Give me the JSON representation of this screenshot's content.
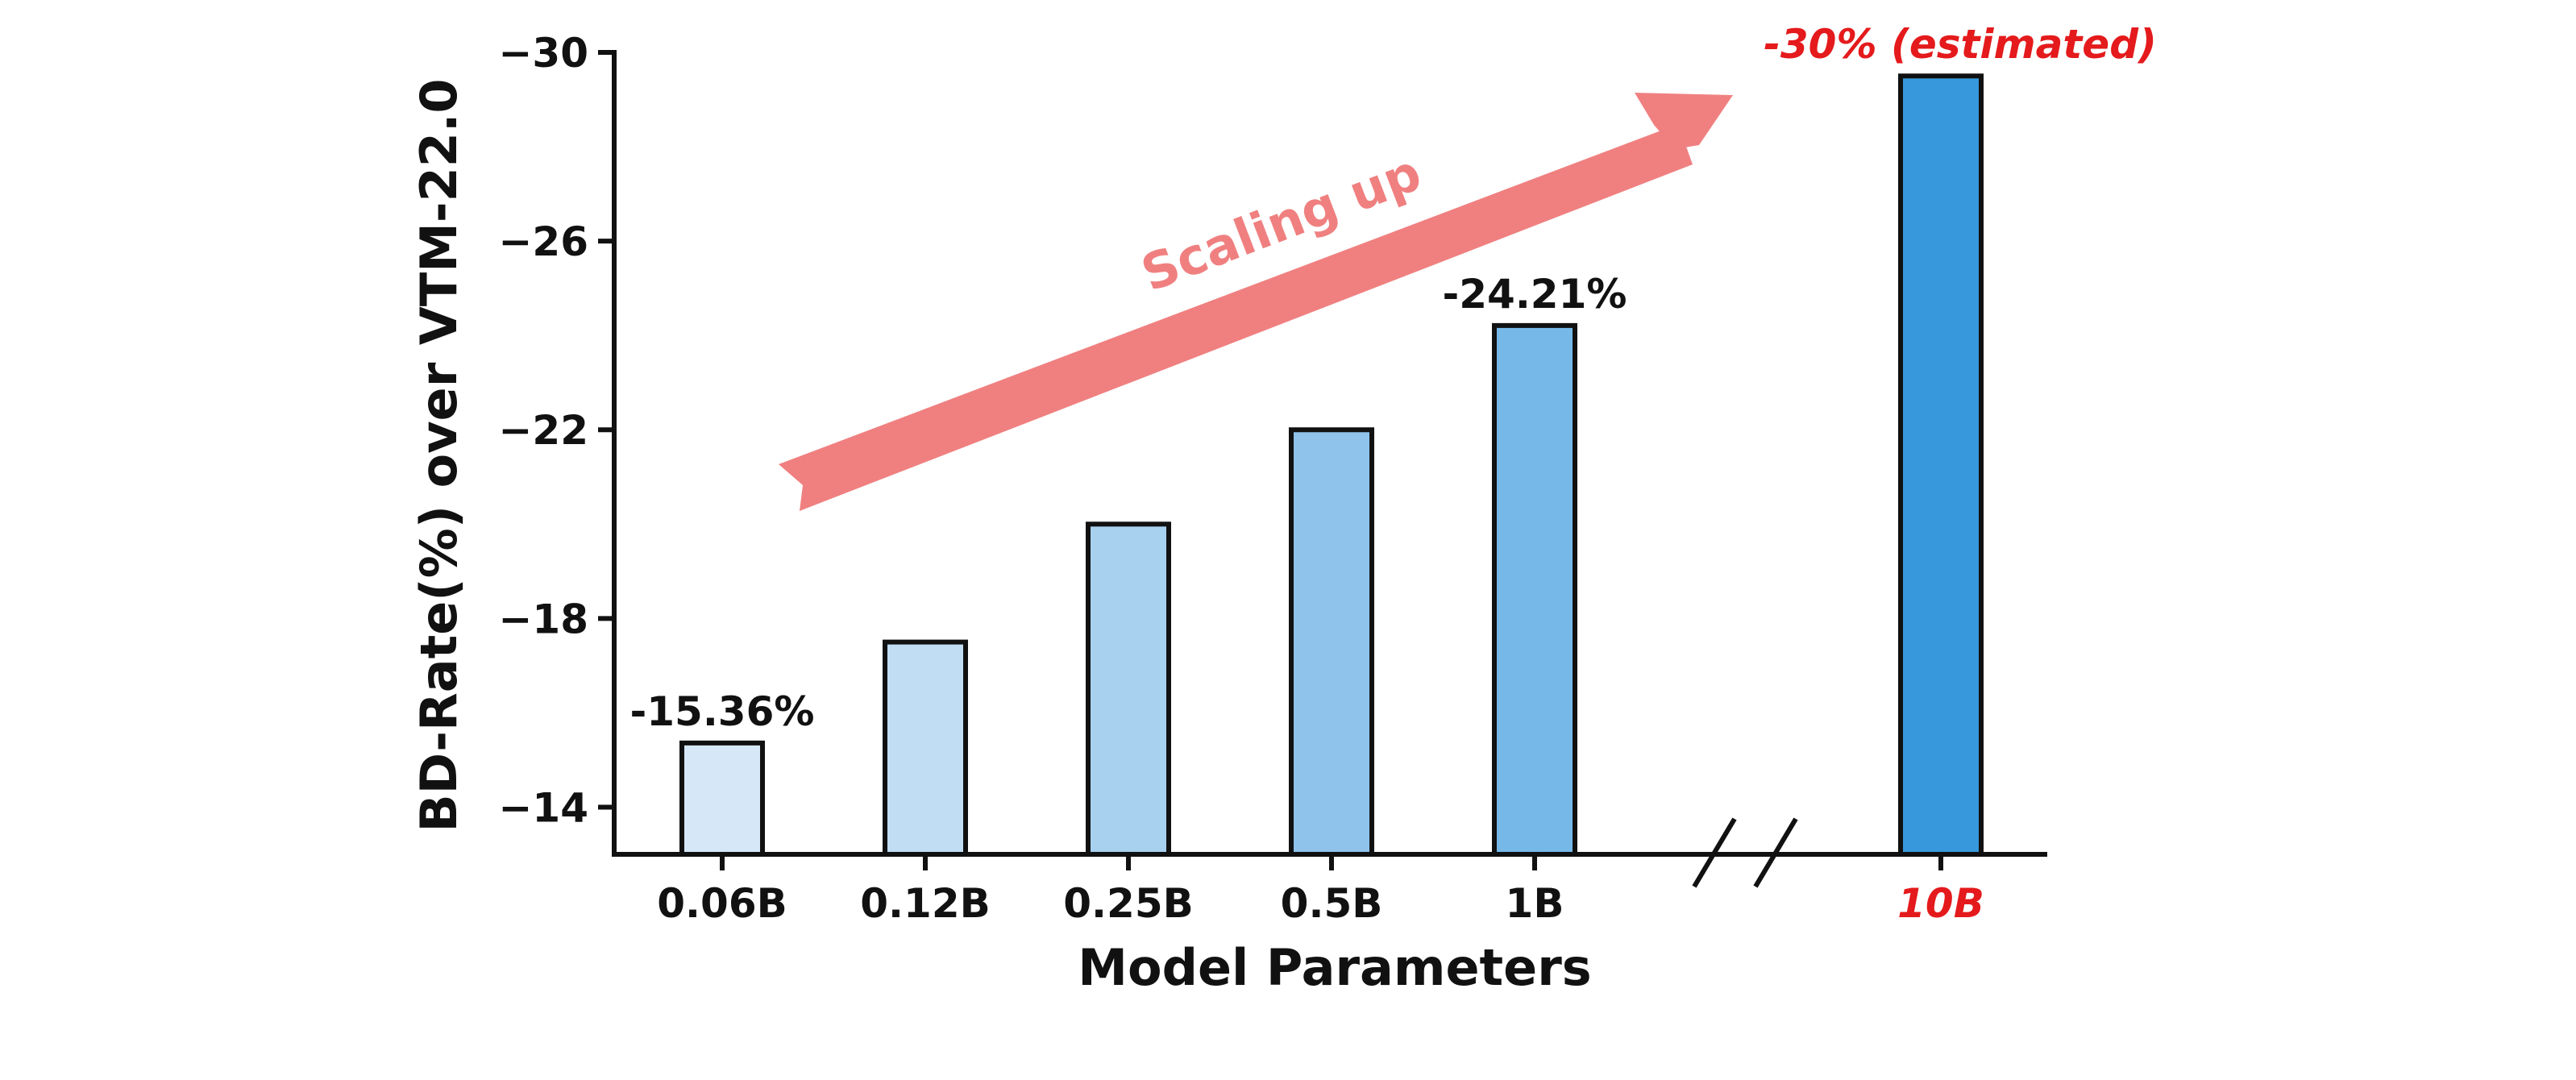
{
  "chart_data": {
    "type": "bar",
    "xlabel": "Model Parameters",
    "ylabel": "BD-Rate(%) over VTM-22.0",
    "categories": [
      "0.06B",
      "0.12B",
      "0.25B",
      "0.5B",
      "1B",
      "10B"
    ],
    "values": [
      -15.36,
      -17.5,
      -20.0,
      -22.0,
      -24.21,
      -29.5
    ],
    "bar_colors": [
      "#d6e8f7",
      "#c0ddf3",
      "#a8d0ef",
      "#8fc3ec",
      "#76b8e7",
      "#3799dc"
    ],
    "estimated_category_index": 5,
    "estimated_color": "#e41a1c",
    "data_labels": [
      {
        "index": 0,
        "text": "-15.36%"
      },
      {
        "index": 4,
        "text": "-24.21%"
      },
      {
        "index": 5,
        "text": "-30% (estimated)"
      }
    ],
    "annotation": {
      "text": "Scaling up",
      "color": "#f08080"
    },
    "axis_break": true,
    "ylim": [
      -13,
      -30
    ],
    "yticks": [
      "−14",
      "−18",
      "−22",
      "−26",
      "−30"
    ],
    "ytick_values": [
      -14,
      -18,
      -22,
      -26,
      -30
    ],
    "grid": false,
    "legend": "none"
  }
}
